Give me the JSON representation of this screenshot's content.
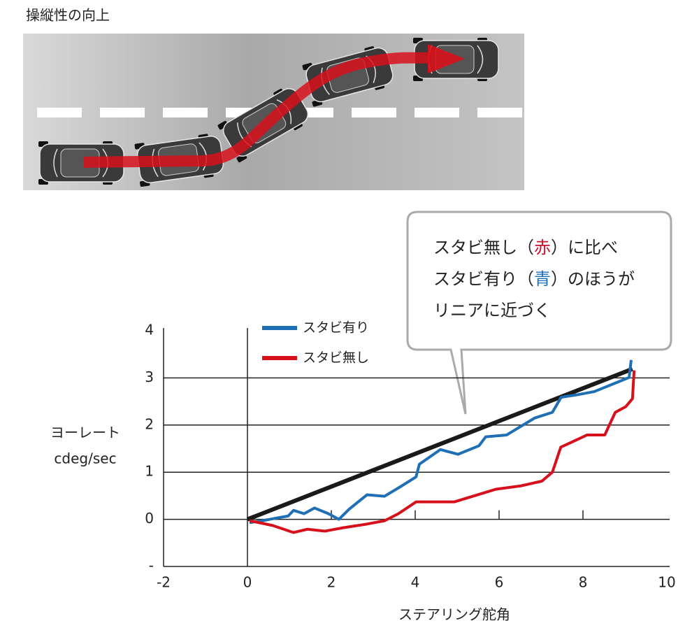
{
  "illustration_title": "操縦性の向上",
  "annotation": {
    "lines": [
      [
        "スタビ無し（",
        "赤",
        "）に比べ"
      ],
      [
        "スタビ有り（",
        "青",
        "）のほうが"
      ],
      [
        "リニアに近づく"
      ]
    ]
  },
  "chart_data": {
    "type": "line",
    "xlabel": "ステアリング舵角",
    "ylabel": [
      "ヨーレート",
      "cdeg/sec"
    ],
    "xlim": [
      -2,
      10
    ],
    "ylim": [
      -1,
      4
    ],
    "xticks": [
      -2,
      0,
      2,
      4,
      6,
      8,
      10
    ],
    "yticks": [
      {
        "value": -1,
        "label": "-"
      },
      0,
      1,
      2,
      3,
      4
    ],
    "grid": true,
    "series": [
      {
        "color": "#1a1a1a",
        "x": [
          0,
          9.18
        ],
        "values": [
          0,
          3.19
        ]
      },
      {
        "name": "スタビ有り",
        "color": "#1f6fb5",
        "x": [
          0.05,
          0.35,
          0.77,
          0.97,
          1.1,
          1.35,
          1.6,
          1.93,
          2.18,
          2.43,
          2.85,
          3.27,
          3.68,
          4.02,
          4.1,
          4.6,
          5.02,
          5.52,
          5.68,
          6.18,
          6.85,
          7.27,
          7.48,
          7.85,
          8.27,
          9.1,
          9.15
        ],
        "values": [
          -0.07,
          -0.03,
          0.04,
          0.07,
          0.19,
          0.12,
          0.24,
          0.12,
          0.0,
          0.22,
          0.52,
          0.49,
          0.71,
          0.9,
          1.17,
          1.48,
          1.38,
          1.56,
          1.75,
          1.79,
          2.15,
          2.27,
          2.59,
          2.64,
          2.71,
          3.01,
          3.38
        ]
      },
      {
        "name": "スタビ無し",
        "color": "#d7111b",
        "x": [
          0.05,
          0.6,
          1.1,
          1.43,
          1.85,
          2.27,
          2.85,
          3.27,
          3.6,
          4.02,
          4.93,
          5.93,
          6.52,
          7.02,
          7.27,
          7.47,
          8.1,
          8.52,
          8.77,
          9.02,
          9.18,
          9.22
        ],
        "values": [
          -0.03,
          -0.13,
          -0.28,
          -0.21,
          -0.25,
          -0.18,
          -0.1,
          -0.03,
          0.12,
          0.37,
          0.37,
          0.64,
          0.71,
          0.81,
          1.0,
          1.53,
          1.79,
          1.79,
          2.27,
          2.39,
          2.56,
          3.16
        ]
      }
    ]
  }
}
